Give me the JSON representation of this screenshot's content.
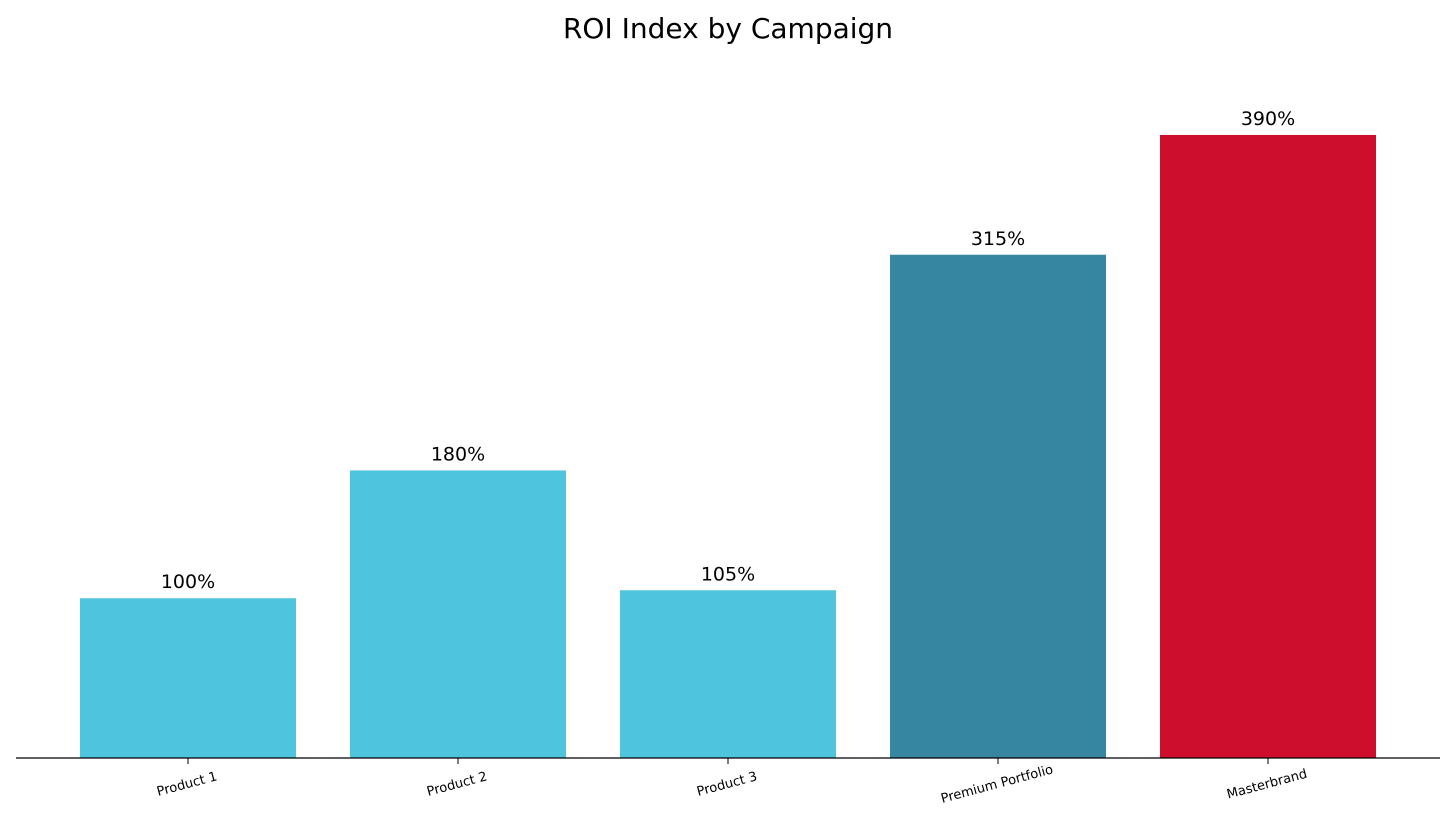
{
  "chart_data": {
    "type": "bar",
    "title": "ROI Index by Campaign",
    "xlabel": "",
    "ylabel": "",
    "categories": [
      "Product 1",
      "Product 2",
      "Product 3",
      "Premium Portfolio",
      "Masterbrand"
    ],
    "values": [
      100,
      180,
      105,
      315,
      390
    ],
    "value_labels": [
      "100%",
      "180%",
      "105%",
      "315%",
      "390%"
    ],
    "colors": [
      "#4fc4df",
      "#4fc4df",
      "#4fc4df",
      "#3686a1",
      "#ce0e2d"
    ],
    "ylim": [
      0,
      410
    ],
    "grid": false,
    "y_axis_visible": false,
    "tick_label_rotation_deg": -15
  }
}
